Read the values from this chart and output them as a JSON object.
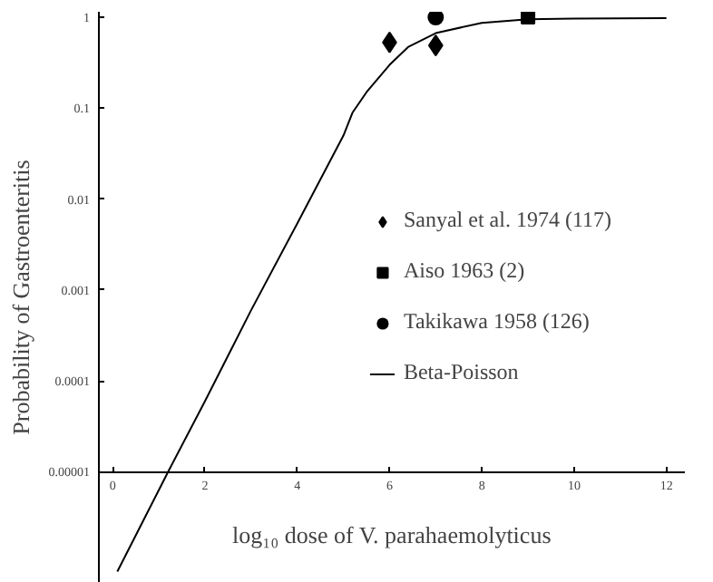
{
  "chart_data": {
    "type": "scatter",
    "xlabel": "log₁₀ dose of V. parahaemolyticus",
    "ylabel": "Probability of Gastroenteritis",
    "log": "y",
    "grid": false,
    "legend": "right",
    "xlim": [
      -0.3,
      12.4
    ],
    "xticks": [
      0,
      2,
      4,
      6,
      8,
      10,
      12
    ],
    "ylim": [
      6e-07,
      1.15
    ],
    "yticks": [
      {
        "value": 1e-05,
        "label": "0.00001"
      },
      {
        "value": 0.0001,
        "label": "0.0001"
      },
      {
        "value": 0.001,
        "label": "0.001"
      },
      {
        "value": 0.01,
        "label": "0.01"
      },
      {
        "value": 0.1,
        "label": "0.1"
      },
      {
        "value": 1,
        "label": "1"
      }
    ],
    "series": [
      {
        "name": "Sanyal et al. 1974 (117)",
        "marker": "diamond",
        "color": "#000000",
        "x": [
          6,
          7
        ],
        "values": [
          0.53,
          0.49
        ]
      },
      {
        "name": "Aiso 1963 (2)",
        "marker": "square",
        "color": "#000000",
        "x": [
          9
        ],
        "values": [
          1.0
        ]
      },
      {
        "name": "Takikawa 1958 (126)",
        "marker": "circle",
        "color": "#000000",
        "x": [
          7
        ],
        "values": [
          1.0
        ]
      },
      {
        "name": "Beta-Poisson",
        "type": "line",
        "marker": "none",
        "line_style": "solid",
        "color": "#000000",
        "x": [
          0.1,
          1.2,
          2,
          3,
          4,
          5,
          5.2,
          5.5,
          6,
          6.4,
          7,
          8,
          9,
          10,
          12
        ],
        "values": [
          8e-07,
          1e-05,
          6e-05,
          0.0006,
          0.0054,
          0.05,
          0.09,
          0.15,
          0.3,
          0.47,
          0.67,
          0.87,
          0.95,
          0.97,
          0.98
        ]
      }
    ]
  }
}
